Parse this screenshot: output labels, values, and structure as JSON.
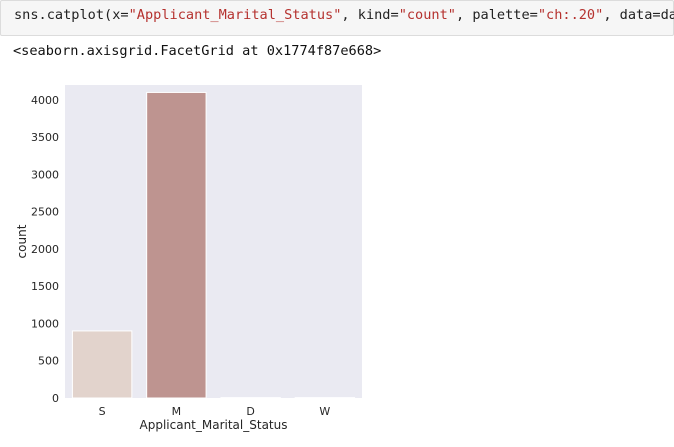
{
  "code": {
    "fn": "sns.catplot(",
    "x_arg": "x=",
    "x_val": "\"Applicant_Marital_Status\"",
    "kind_arg": ", kind=",
    "kind_val": "\"count\"",
    "pal_arg": ", palette=",
    "pal_val": "\"ch:.20\"",
    "data_arg": ", data=data)"
  },
  "output_text": "<seaborn.axisgrid.FacetGrid at 0x1774f87e668>",
  "chart_data": {
    "type": "bar",
    "categories": [
      "S",
      "M",
      "D",
      "W"
    ],
    "values": [
      900,
      4100,
      5,
      5
    ],
    "colors": [
      "#e2d3cc",
      "#be9490",
      "#a37874",
      "#8a5f5c"
    ],
    "xlabel": "Applicant_Marital_Status",
    "ylabel": "count",
    "ylim": [
      0,
      4200
    ],
    "yticks": [
      0,
      500,
      1000,
      1500,
      2000,
      2500,
      3000,
      3500,
      4000
    ],
    "plot_background": "#eaeaf2",
    "grid": false
  }
}
